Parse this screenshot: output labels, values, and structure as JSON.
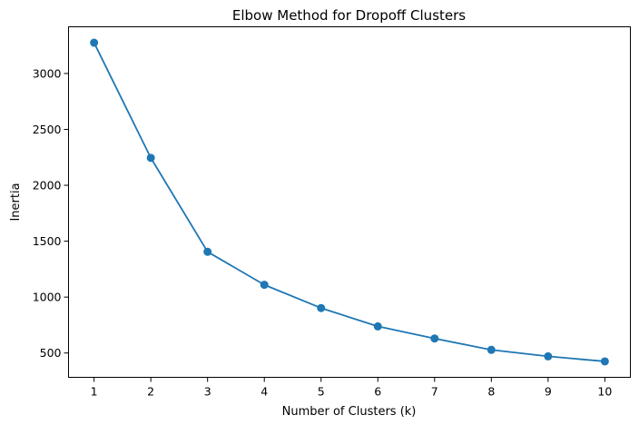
{
  "chart_data": {
    "type": "line",
    "title": "Elbow Method for Dropoff Clusters",
    "xlabel": "Number of Clusters (k)",
    "ylabel": "Inertia",
    "x": [
      1,
      2,
      3,
      4,
      5,
      6,
      7,
      8,
      9,
      10
    ],
    "series": [
      {
        "name": "Inertia",
        "values": [
          3275,
          2245,
          1405,
          1110,
          902,
          738,
          630,
          528,
          470,
          425
        ],
        "color": "#1f77b4",
        "marker": "circle"
      }
    ],
    "xticks": [
      1,
      2,
      3,
      4,
      5,
      6,
      7,
      8,
      9,
      10
    ],
    "xtick_labels": [
      "1",
      "2",
      "3",
      "4",
      "5",
      "6",
      "7",
      "8",
      "9",
      "10"
    ],
    "yticks": [
      500,
      1000,
      1500,
      2000,
      2500,
      3000
    ],
    "ytick_labels": [
      "500",
      "1000",
      "1500",
      "2000",
      "2500",
      "3000"
    ],
    "xlim": [
      0.55,
      10.45
    ],
    "ylim": [
      282.5,
      3417.5
    ],
    "grid": false,
    "legend": "none"
  }
}
